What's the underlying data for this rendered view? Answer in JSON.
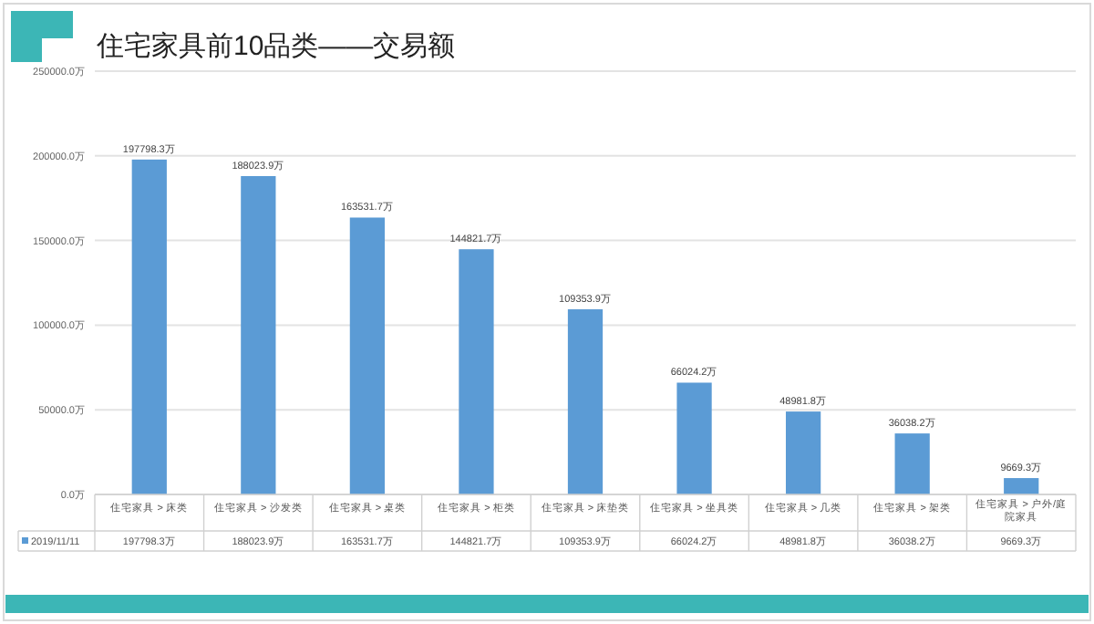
{
  "chart_data": {
    "type": "bar",
    "title": "住宅家具前10品类——交易额",
    "categories": [
      "住宅家具 > 床类",
      "住宅家具 > 沙发类",
      "住宅家具 > 桌类",
      "住宅家具 > 柜类",
      "住宅家具 > 床垫类",
      "住宅家具 > 坐具类",
      "住宅家具 > 几类",
      "住宅家具 > 架类",
      "住宅家具 > 户外/庭院家具"
    ],
    "series": [
      {
        "name": "2019/11/11",
        "color": "#5b9bd5",
        "values": [
          197798.3,
          188023.9,
          163531.7,
          144821.7,
          109353.9,
          66024.2,
          48981.8,
          36038.2,
          9669.3
        ],
        "value_labels": [
          "197798.3万",
          "188023.9万",
          "163531.7万",
          "144821.7万",
          "109353.9万",
          "66024.2万",
          "48981.8万",
          "36038.2万",
          "9669.3万"
        ]
      }
    ],
    "ylim": [
      0,
      250000
    ],
    "yticks": [
      {
        "value": 0,
        "label": "0.0万"
      },
      {
        "value": 50000,
        "label": "50000.0万"
      },
      {
        "value": 100000,
        "label": "100000.0万"
      },
      {
        "value": 150000,
        "label": "150000.0万"
      },
      {
        "value": 200000,
        "label": "200000.0万"
      },
      {
        "value": 250000,
        "label": "250000.0万"
      }
    ],
    "grid": "y",
    "legend": "bottom left"
  }
}
